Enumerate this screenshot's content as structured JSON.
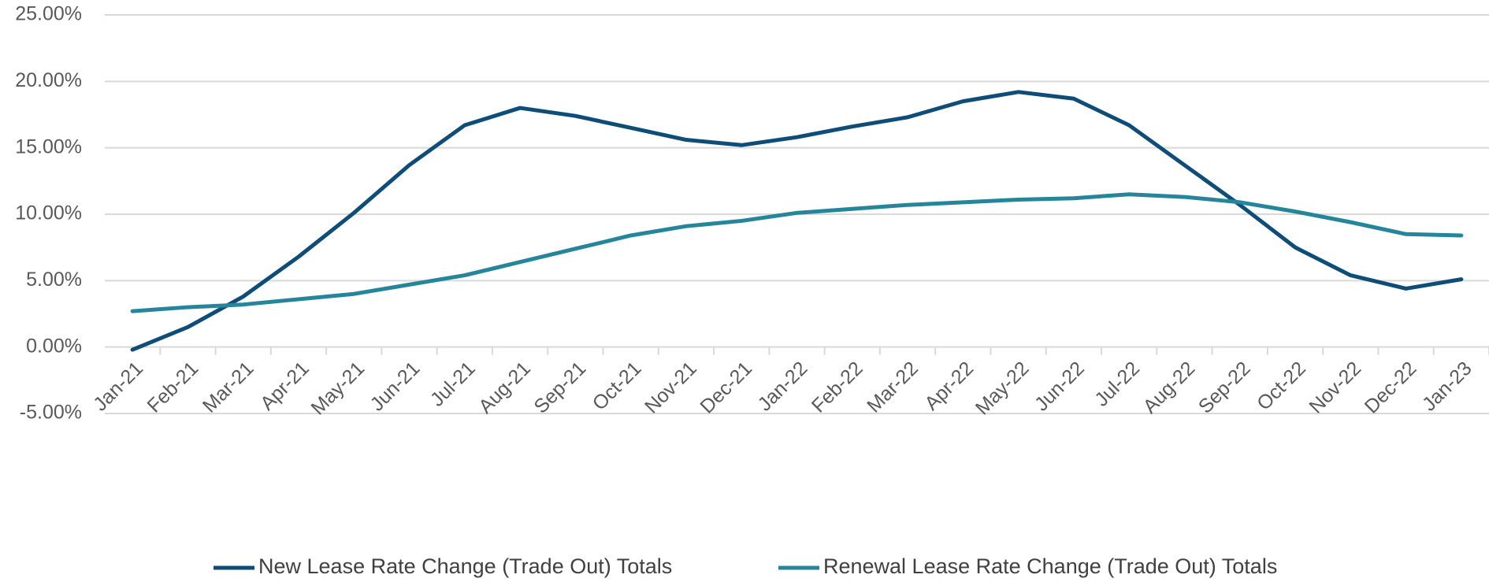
{
  "chart_data": {
    "type": "line",
    "categories": [
      "Jan-21",
      "Feb-21",
      "Mar-21",
      "Apr-21",
      "May-21",
      "Jun-21",
      "Jul-21",
      "Aug-21",
      "Sep-21",
      "Oct-21",
      "Nov-21",
      "Dec-21",
      "Jan-22",
      "Feb-22",
      "Mar-22",
      "Apr-22",
      "May-22",
      "Jun-22",
      "Jul-22",
      "Aug-22",
      "Sep-22",
      "Oct-22",
      "Nov-22",
      "Dec-22",
      "Jan-23"
    ],
    "series": [
      {
        "name": "New Lease Rate Change (Trade Out) Totals",
        "color": "#0d4d78",
        "values": [
          -0.2,
          1.5,
          3.8,
          6.8,
          10.1,
          13.7,
          16.7,
          18.0,
          17.4,
          16.5,
          15.6,
          15.2,
          15.8,
          16.6,
          17.3,
          18.5,
          19.2,
          18.7,
          16.7,
          13.7,
          10.7,
          7.5,
          5.4,
          4.4,
          5.1
        ]
      },
      {
        "name": "Renewal Lease Rate Change (Trade Out) Totals",
        "color": "#25859a",
        "values": [
          2.7,
          3.0,
          3.2,
          3.6,
          4.0,
          4.7,
          5.4,
          6.4,
          7.4,
          8.4,
          9.1,
          9.5,
          10.1,
          10.4,
          10.7,
          10.9,
          11.1,
          11.2,
          11.5,
          11.3,
          10.9,
          10.2,
          9.4,
          8.5,
          8.4
        ]
      }
    ],
    "ylim": [
      -5,
      25
    ],
    "yticks": [
      {
        "value": -5,
        "label": "-5.00%"
      },
      {
        "value": 0,
        "label": "0.00%"
      },
      {
        "value": 5,
        "label": "5.00%"
      },
      {
        "value": 10,
        "label": "10.00%"
      },
      {
        "value": 15,
        "label": "15.00%"
      },
      {
        "value": 20,
        "label": "20.00%"
      },
      {
        "value": 25,
        "label": "25.00%"
      }
    ],
    "grid": true,
    "legend": "bottom"
  }
}
